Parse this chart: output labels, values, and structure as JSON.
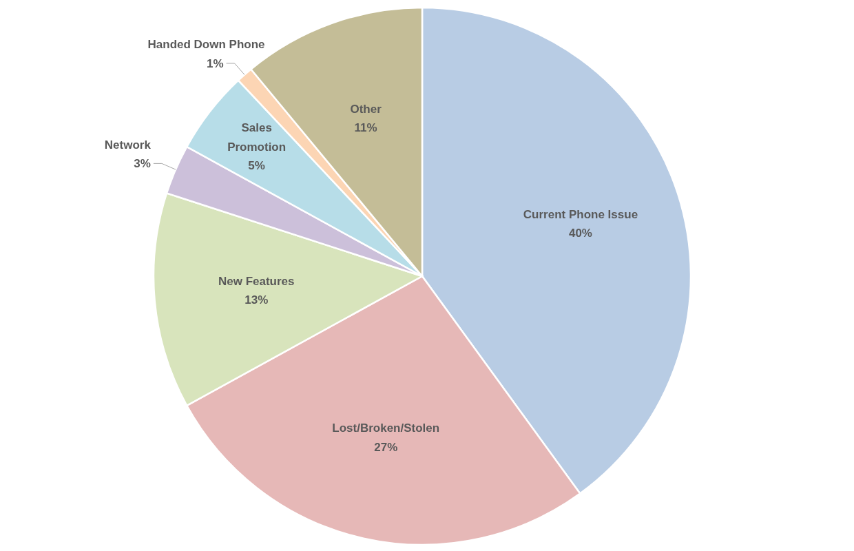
{
  "chart_data": {
    "type": "pie",
    "categories": [
      "Current Phone Issue",
      "Lost/Broken/Stolen",
      "New Features",
      "Network",
      "Sales Promotion",
      "Handed Down Phone",
      "Other"
    ],
    "values": [
      40,
      27,
      13,
      3,
      5,
      1,
      11
    ],
    "value_labels": [
      "40%",
      "27%",
      "13%",
      "3%",
      "5%",
      "1%",
      "11%"
    ],
    "colors": [
      "#b8cce4",
      "#e6b8b7",
      "#d8e4bc",
      "#ccc0da",
      "#b7dde8",
      "#fcd5b4",
      "#c4bd97"
    ]
  }
}
